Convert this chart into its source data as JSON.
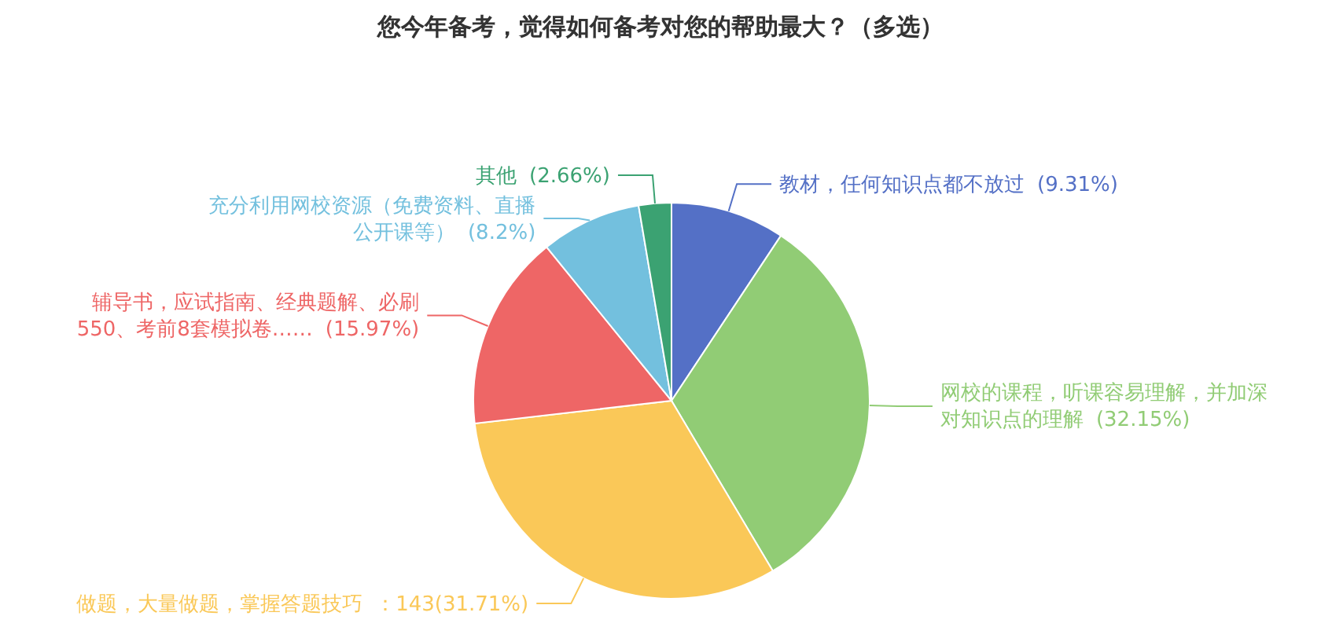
{
  "chart_data": {
    "type": "pie",
    "title": "您今年备考，觉得如何备考对您的帮助最大？（多选）",
    "categories": [
      "教材，任何知识点都不放过",
      "网校的课程，听课容易理解，并加深对知识点的理解",
      "做题，大量做题，掌握答题技巧",
      "辅导书，应试指南、经典题解、必刷550、考前8套模拟卷……",
      "充分利用网校资源（免费资料、直播公开课等）",
      "其他"
    ],
    "values": [
      9.31,
      32.15,
      31.71,
      15.97,
      8.2,
      2.66
    ],
    "value_labels": [
      "(9.31%)",
      "(32.15%)",
      "：143(31.71%)",
      "(15.97%)",
      "(8.2%)",
      "(2.66%)"
    ],
    "colors": [
      "#5470c6",
      "#91cc75",
      "#fac858",
      "#ee6666",
      "#73c0de",
      "#3ba272"
    ]
  }
}
